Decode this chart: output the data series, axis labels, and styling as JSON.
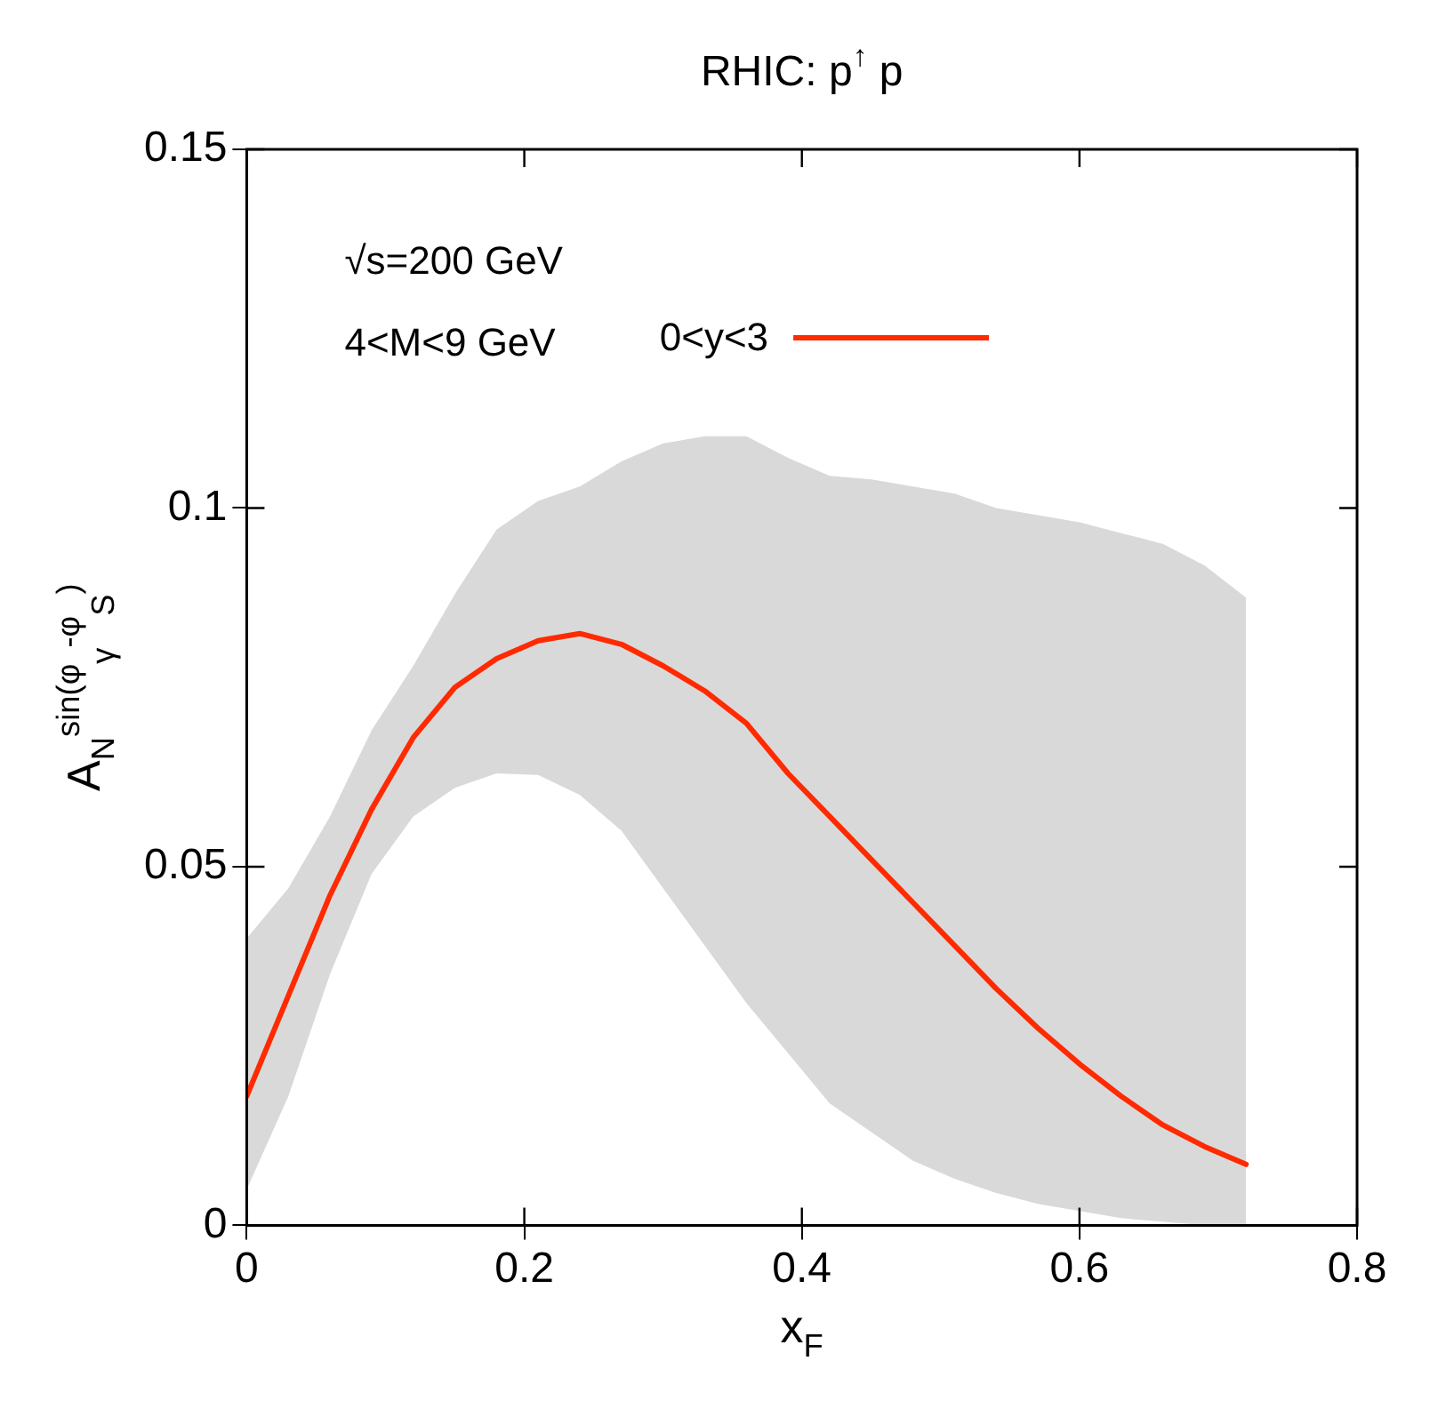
{
  "chart_data": {
    "type": "line",
    "title": "RHIC: p$^{↑}$ p",
    "xlabel": "x$_{F}$",
    "ylabel": "A$_{N}$$^{sin(φ}$$_{γ}$$^{-φ}$$_{S}$$^{)}$",
    "x": [
      0,
      0.03,
      0.06,
      0.09,
      0.12,
      0.15,
      0.18,
      0.21,
      0.24,
      0.27,
      0.3,
      0.33,
      0.36,
      0.39,
      0.42,
      0.45,
      0.48,
      0.51,
      0.54,
      0.57,
      0.6,
      0.63,
      0.66,
      0.69,
      0.72
    ],
    "series": [
      {
        "name": "0<y<3",
        "color": "#ff2a00",
        "values": [
          0.018,
          0.032,
          0.046,
          0.058,
          0.068,
          0.075,
          0.079,
          0.0815,
          0.0825,
          0.081,
          0.078,
          0.0745,
          0.07,
          0.063,
          0.057,
          0.051,
          0.045,
          0.039,
          0.033,
          0.0275,
          0.0225,
          0.018,
          0.014,
          0.011,
          0.0085
        ],
        "lower": [
          0.005,
          0.018,
          0.035,
          0.049,
          0.057,
          0.061,
          0.063,
          0.0628,
          0.06,
          0.055,
          0.047,
          0.039,
          0.031,
          0.024,
          0.017,
          0.013,
          0.009,
          0.0065,
          0.0045,
          0.003,
          0.002,
          0.001,
          0.0005,
          0,
          0
        ],
        "upper": [
          0.04,
          0.047,
          0.057,
          0.069,
          0.078,
          0.088,
          0.097,
          0.101,
          0.103,
          0.1065,
          0.109,
          0.11,
          0.11,
          0.107,
          0.1045,
          0.104,
          0.103,
          0.102,
          0.1,
          0.099,
          0.098,
          0.0965,
          0.095,
          0.092,
          0.0875
        ]
      }
    ],
    "annotations": [
      "√s=200 GeV",
      "4<M<9 GeV"
    ],
    "xlim": [
      0,
      0.8
    ],
    "xticks": [
      0,
      0.2,
      0.4,
      0.6,
      0.8
    ],
    "ylim": [
      0,
      0.15
    ],
    "yticks": [
      0,
      0.05,
      0.1,
      0.15
    ],
    "legend": "top",
    "grid": false
  }
}
